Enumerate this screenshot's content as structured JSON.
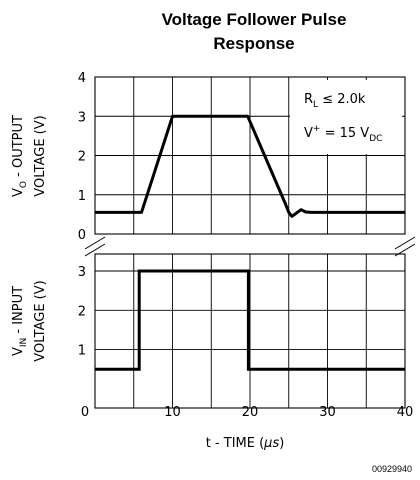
{
  "chart_data": {
    "type": "line",
    "title_lines": [
      "Voltage Follower Pulse",
      "Response"
    ],
    "xlabel_text": "t - TIME (",
    "xlabel_unit": "μs",
    "xlabel_close": ")",
    "xlim": [
      0,
      40
    ],
    "xticks": [
      "0",
      "10",
      "20",
      "30",
      "40"
    ],
    "figure_number": "00929940",
    "upper": {
      "ylabel_line1_pre": "V",
      "ylabel_line1_sub": "O",
      "ylabel_line1_post": " - OUTPUT",
      "ylabel_line2": "VOLTAGE (V)",
      "ylim": [
        0,
        4
      ],
      "yticks": [
        "0",
        "1",
        "2",
        "3",
        "4"
      ],
      "series": {
        "x": [
          0,
          6,
          10,
          19.7,
          24.5,
          25,
          25.4,
          25.9,
          26.6,
          27.2,
          28,
          40
        ],
        "y": [
          0.55,
          0.55,
          3.0,
          3.0,
          0.8,
          0.55,
          0.45,
          0.52,
          0.62,
          0.56,
          0.55,
          0.55
        ]
      },
      "annotation": {
        "line1_pre": "R",
        "line1_sub": "L",
        "line1_post": " ≤ 2.0k",
        "line2_pre": "V",
        "line2_sup": "+",
        "line2_mid": " = 15 V",
        "line2_sub": "DC"
      }
    },
    "lower": {
      "ylabel_line1_pre": "V",
      "ylabel_line1_sub": "IN",
      "ylabel_line1_post": " - INPUT",
      "ylabel_line2": "VOLTAGE (V)",
      "ylim": [
        0,
        3.4
      ],
      "yticks": [
        "1",
        "2",
        "3"
      ],
      "ytick_values": [
        1,
        2,
        3
      ],
      "series": {
        "x": [
          0,
          5.7,
          5.7,
          19.8,
          19.8,
          40
        ],
        "y": [
          0.5,
          0.5,
          3.0,
          3.0,
          0.5,
          0.5
        ]
      }
    }
  }
}
